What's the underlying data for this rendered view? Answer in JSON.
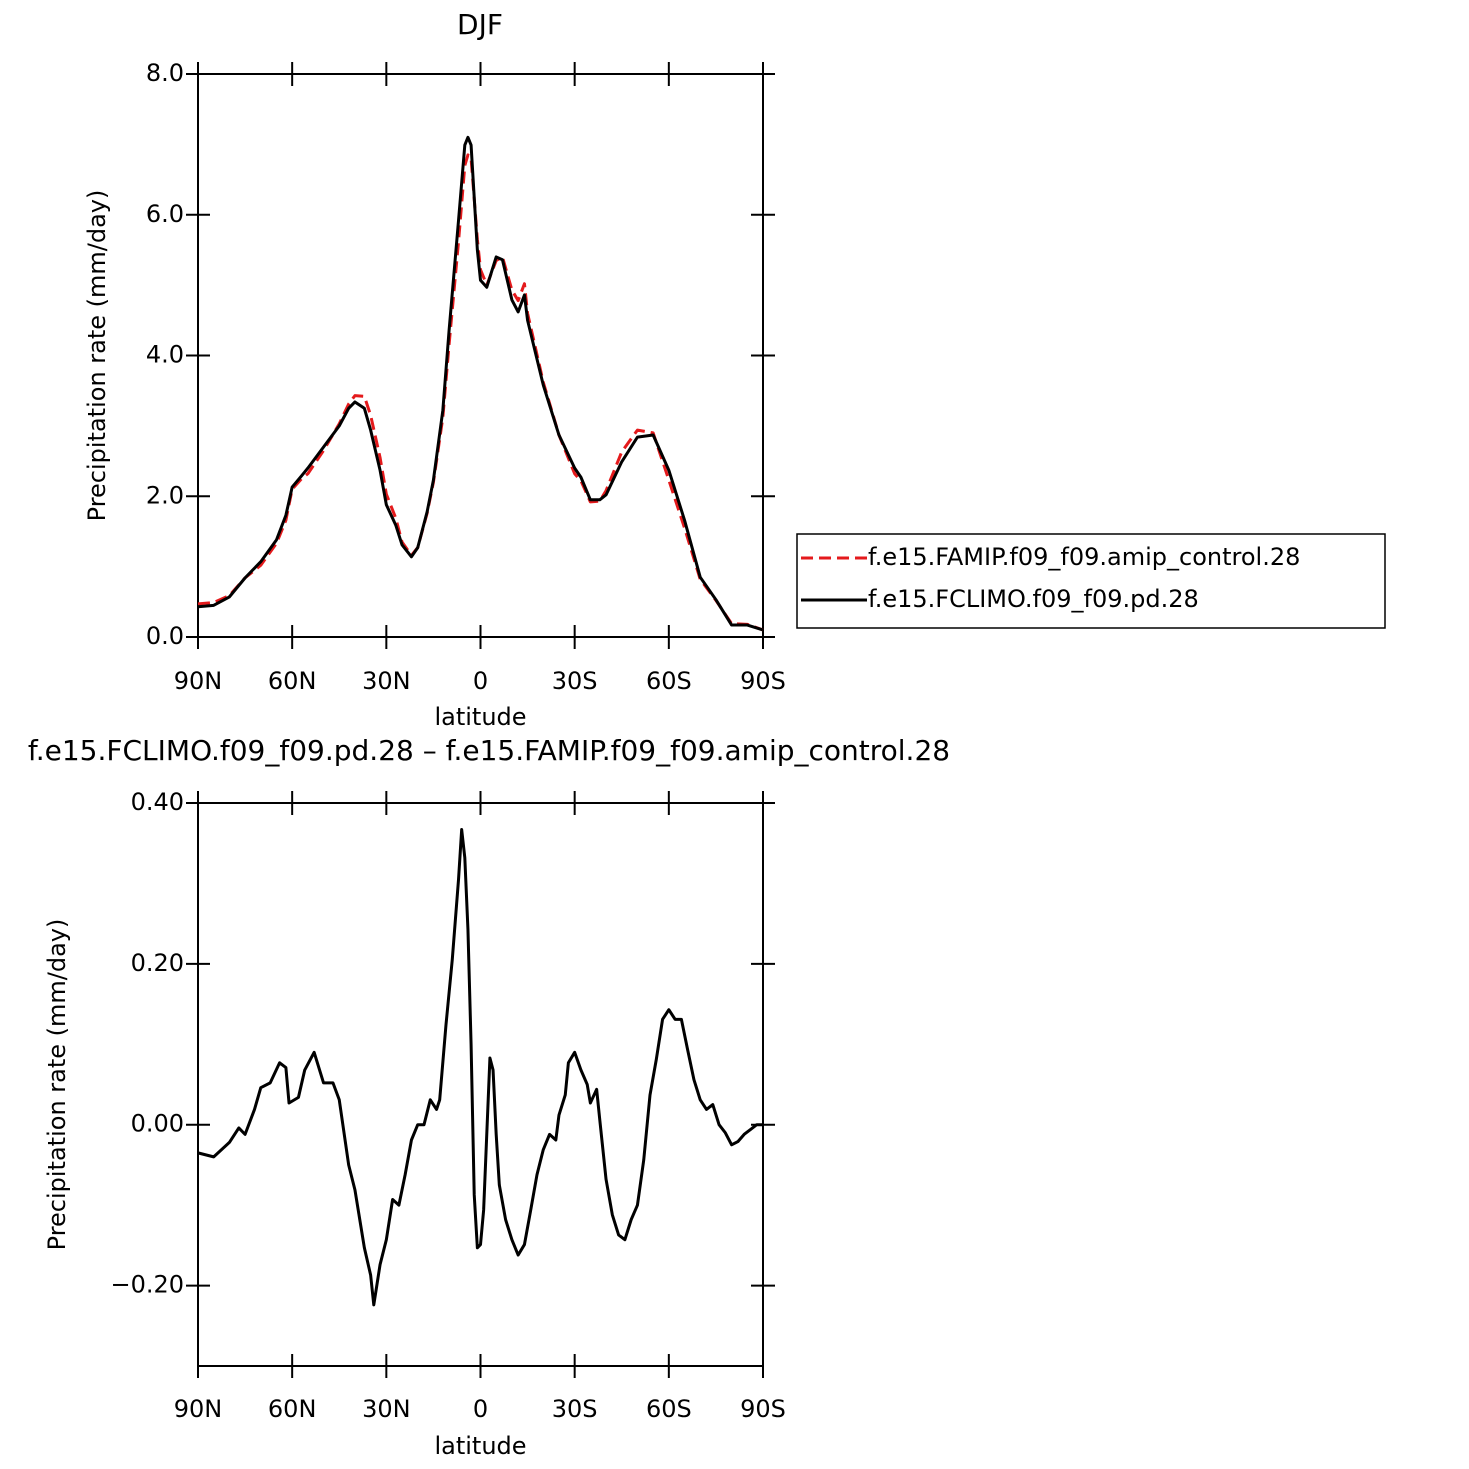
{
  "chart_data": [
    {
      "type": "line",
      "title": "DJF",
      "xlabel": "latitude",
      "ylabel": "Precipitation rate (mm/day)",
      "xlim": [
        90,
        -90
      ],
      "xticks": [
        {
          "value": 90,
          "label": "90N"
        },
        {
          "value": 60,
          "label": "60N"
        },
        {
          "value": 30,
          "label": "30N"
        },
        0,
        {
          "value": -30,
          "label": "30S"
        },
        {
          "value": -60,
          "label": "60S"
        },
        {
          "value": -90,
          "label": "90S"
        }
      ],
      "ylim": [
        0,
        8
      ],
      "yticks": [
        {
          "value": 0,
          "label": "0.0"
        },
        {
          "value": 2,
          "label": "2.0"
        },
        {
          "value": 4,
          "label": "4.0"
        },
        {
          "value": 6,
          "label": "6.0"
        },
        {
          "value": 8,
          "label": "8.0"
        }
      ],
      "legend": "right",
      "x": [
        90,
        85,
        80,
        75,
        70,
        65,
        62,
        60,
        57,
        55,
        50,
        45,
        42,
        40,
        37,
        35,
        32,
        30,
        27,
        25,
        22,
        20,
        17,
        15,
        12,
        10,
        7,
        5,
        4,
        3,
        1,
        0,
        -2,
        -5,
        -7,
        -10,
        -12,
        -14,
        -15,
        -20,
        -25,
        -30,
        -32,
        -35,
        -38,
        -40,
        -45,
        -50,
        -55,
        -60,
        -65,
        -70,
        -75,
        -80,
        -85,
        -90
      ],
      "series": [
        {
          "name": "f.e15.FAMIP.f09_f09.amip_control.28",
          "color": "#e41a1c",
          "style": "dashed",
          "values": [
            0.47,
            0.49,
            0.59,
            0.84,
            1.02,
            1.33,
            1.66,
            2.1,
            2.25,
            2.32,
            2.65,
            3.03,
            3.31,
            3.43,
            3.42,
            3.15,
            2.55,
            2.03,
            1.69,
            1.35,
            1.16,
            1.27,
            1.76,
            2.2,
            3.12,
            4.16,
            5.62,
            6.7,
            6.85,
            6.8,
            5.65,
            5.22,
            5.0,
            5.35,
            5.4,
            4.93,
            4.78,
            5.02,
            4.6,
            3.62,
            2.87,
            2.32,
            2.22,
            1.92,
            1.93,
            2.08,
            2.63,
            2.94,
            2.9,
            2.23,
            1.55,
            0.82,
            0.52,
            0.19,
            0.18,
            0.1
          ]
        },
        {
          "name": "f.e15.FCLIMO.f09_f09.pd.28",
          "color": "#000000",
          "style": "solid",
          "values": [
            0.43,
            0.45,
            0.57,
            0.84,
            1.07,
            1.38,
            1.73,
            2.13,
            2.29,
            2.4,
            2.7,
            3.0,
            3.25,
            3.34,
            3.25,
            2.94,
            2.37,
            1.88,
            1.59,
            1.31,
            1.14,
            1.27,
            1.78,
            2.23,
            3.22,
            4.36,
            5.92,
            6.99,
            7.1,
            6.99,
            5.5,
            5.07,
            4.97,
            5.4,
            5.36,
            4.79,
            4.62,
            4.86,
            4.5,
            3.58,
            2.87,
            2.4,
            2.27,
            1.95,
            1.95,
            2.02,
            2.49,
            2.84,
            2.87,
            2.37,
            1.66,
            0.85,
            0.53,
            0.17,
            0.17,
            0.1
          ]
        }
      ]
    },
    {
      "type": "line",
      "title": "f.e15.FCLIMO.f09_f09.pd.28 – f.e15.FAMIP.f09_f09.amip_control.28",
      "xlabel": "latitude",
      "ylabel": "Precipitation rate (mm/day)",
      "xlim": [
        90,
        -90
      ],
      "xticks": [
        {
          "value": 90,
          "label": "90N"
        },
        {
          "value": 60,
          "label": "60N"
        },
        {
          "value": 30,
          "label": "30N"
        },
        0,
        {
          "value": -30,
          "label": "30S"
        },
        {
          "value": -60,
          "label": "60S"
        },
        {
          "value": -90,
          "label": "90S"
        }
      ],
      "ylim": [
        -0.3,
        0.4
      ],
      "yticks": [
        {
          "value": -0.2,
          "label": "−0.20"
        },
        {
          "value": 0,
          "label": "0.00"
        },
        {
          "value": 0.2,
          "label": "0.20"
        },
        {
          "value": 0.4,
          "label": "0.40"
        }
      ],
      "color": "#000000",
      "x": [
        90,
        85,
        80,
        77,
        75,
        72,
        70,
        67,
        64,
        62,
        61,
        58,
        56,
        53,
        50,
        47,
        45,
        42,
        40,
        37,
        35,
        34,
        32,
        30,
        28,
        26,
        24,
        22,
        20,
        18,
        16,
        14,
        13,
        11,
        9,
        7,
        6,
        5,
        4,
        3,
        2,
        1,
        0,
        -1,
        -3,
        -4,
        -5,
        -6,
        -8,
        -10,
        -12,
        -14,
        -16,
        -18,
        -20,
        -22,
        -24,
        -25,
        -27,
        -28,
        -30,
        -32,
        -34,
        -35,
        -37,
        -38,
        -40,
        -42,
        -44,
        -46,
        -48,
        -50,
        -52,
        -54,
        -56,
        -58,
        -60,
        -62,
        -64,
        -66,
        -68,
        -70,
        -72,
        -74,
        -76,
        -78,
        -80,
        -82,
        -84,
        -86,
        -88,
        -90
      ],
      "values": [
        -0.035,
        -0.04,
        -0.022,
        -0.004,
        -0.012,
        0.019,
        0.046,
        0.052,
        0.077,
        0.071,
        0.027,
        0.034,
        0.068,
        0.09,
        0.052,
        0.052,
        0.031,
        -0.05,
        -0.081,
        -0.153,
        -0.187,
        -0.224,
        -0.174,
        -0.143,
        -0.093,
        -0.1,
        -0.062,
        -0.019,
        0.0,
        0.0,
        0.031,
        0.019,
        0.031,
        0.124,
        0.205,
        0.305,
        0.367,
        0.332,
        0.243,
        0.1,
        -0.087,
        -0.153,
        -0.149,
        -0.106,
        0.083,
        0.068,
        -0.012,
        -0.075,
        -0.118,
        -0.143,
        -0.162,
        -0.149,
        -0.106,
        -0.062,
        -0.031,
        -0.012,
        -0.019,
        0.012,
        0.037,
        0.077,
        0.09,
        0.068,
        0.05,
        0.027,
        0.044,
        0.006,
        -0.068,
        -0.112,
        -0.137,
        -0.143,
        -0.118,
        -0.1,
        -0.044,
        0.037,
        0.081,
        0.131,
        0.143,
        0.131,
        0.131,
        0.093,
        0.056,
        0.031,
        0.019,
        0.025,
        0.0,
        -0.01,
        -0.025,
        -0.021,
        -0.012,
        -0.006,
        0.0,
        0.0
      ]
    }
  ]
}
